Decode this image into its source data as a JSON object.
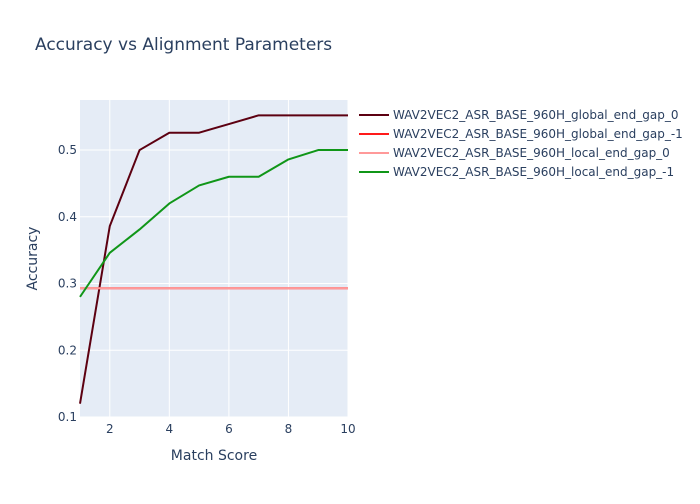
{
  "chart_data": {
    "type": "line",
    "title": "Accuracy vs Alignment Parameters",
    "xlabel": "Match Score",
    "ylabel": "Accuracy",
    "xlim": [
      1,
      10
    ],
    "ylim": [
      0.1,
      0.575
    ],
    "x_ticks": [
      2,
      4,
      6,
      8,
      10
    ],
    "y_ticks": [
      0.1,
      0.2,
      0.3,
      0.4,
      0.5
    ],
    "grid": true,
    "legend_position": "right",
    "x": [
      1,
      2,
      3,
      4,
      5,
      6,
      7,
      8,
      9,
      10
    ],
    "series": [
      {
        "name": "WAV2VEC2_ASR_BASE_960H_global_end_gap_0",
        "color": "#5c0011",
        "values": [
          0.12,
          0.386,
          0.5,
          0.526,
          0.526,
          0.539,
          0.552,
          0.552,
          0.552,
          0.552
        ]
      },
      {
        "name": "WAV2VEC2_ASR_BASE_960H_global_end_gap_-1",
        "color": "#ff1a1a",
        "values": [
          0.293,
          0.293,
          0.293,
          0.293,
          0.293,
          0.293,
          0.293,
          0.293,
          0.293,
          0.293
        ]
      },
      {
        "name": "WAV2VEC2_ASR_BASE_960H_local_end_gap_0",
        "color": "#ff9999",
        "values": [
          0.293,
          0.293,
          0.293,
          0.293,
          0.293,
          0.293,
          0.293,
          0.293,
          0.293,
          0.293
        ]
      },
      {
        "name": "WAV2VEC2_ASR_BASE_960H_local_end_gap_-1",
        "color": "#109618",
        "values": [
          0.28,
          0.346,
          0.381,
          0.42,
          0.447,
          0.46,
          0.46,
          0.486,
          0.5,
          0.5
        ]
      }
    ]
  }
}
